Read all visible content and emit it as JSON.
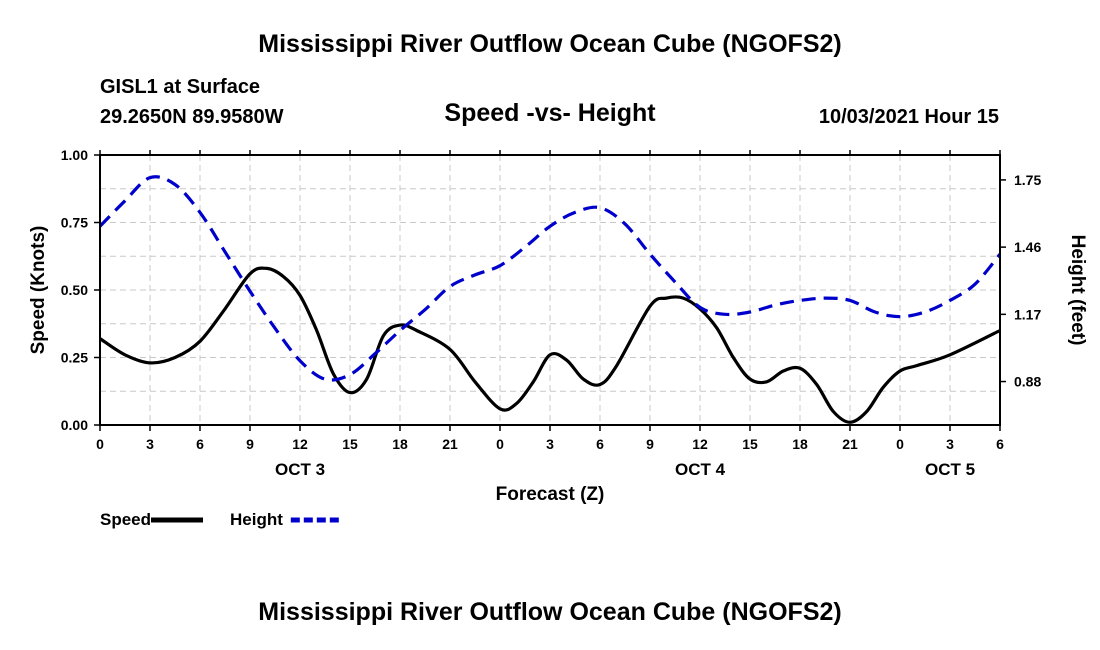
{
  "header": {
    "title": "Mississippi River Outflow Ocean Cube (NGOFS2)",
    "station": "GISL1 at Surface",
    "coordinates": "29.2650N  89.9580W",
    "subtitle": "Speed -vs- Height",
    "datetime": "10/03/2021 Hour 15"
  },
  "footer": {
    "title": "Mississippi River Outflow Ocean Cube (NGOFS2)"
  },
  "chart_data": {
    "type": "line",
    "title": "Speed -vs- Height",
    "xlabel": "Forecast (Z)",
    "ylabel": "Speed (Knots)",
    "y2label": "Height (feet)",
    "x_unit": "hours since 10/03/2021 00Z",
    "xlim": [
      0,
      54
    ],
    "ylim": [
      0,
      1.0
    ],
    "y2lim": [
      0.6925,
      1.8575
    ],
    "x_ticks": [
      0,
      3,
      6,
      9,
      12,
      15,
      18,
      21,
      24,
      27,
      30,
      33,
      36,
      39,
      42,
      45,
      48,
      51,
      54
    ],
    "x_tick_labels": [
      "0",
      "3",
      "6",
      "9",
      "12",
      "15",
      "18",
      "21",
      "0",
      "3",
      "6",
      "9",
      "12",
      "15",
      "18",
      "21",
      "0",
      "3",
      "6"
    ],
    "day_labels": [
      {
        "x": 12,
        "label": "OCT 3"
      },
      {
        "x": 36,
        "label": "OCT 4"
      },
      {
        "x": 51,
        "label": "OCT 5"
      }
    ],
    "y_ticks": [
      0,
      0.25,
      0.5,
      0.75,
      1.0
    ],
    "y_tick_labels": [
      "0.00",
      "0.25",
      "0.50",
      "0.75",
      "1.00"
    ],
    "y2_ticks": [
      0.88,
      1.17,
      1.46,
      1.75
    ],
    "y2_tick_labels": [
      "0.88",
      "1.17",
      "1.46",
      "1.75"
    ],
    "grid": true,
    "legend_position": "bottom-left",
    "series": [
      {
        "name": "Speed",
        "axis": "left",
        "color": "#000000",
        "style": "solid",
        "x": [
          0,
          1.5,
          3,
          4.5,
          6,
          7.5,
          9,
          10,
          11,
          12,
          13,
          14,
          15,
          16,
          17,
          18,
          19,
          21,
          22.5,
          24,
          25,
          26,
          27,
          28,
          29,
          30,
          31,
          33,
          34,
          35,
          36,
          37,
          38,
          39,
          40,
          41,
          42,
          43,
          44,
          45,
          46,
          47,
          48,
          49,
          51,
          54
        ],
        "values": [
          0.32,
          0.26,
          0.23,
          0.25,
          0.31,
          0.43,
          0.56,
          0.58,
          0.55,
          0.48,
          0.35,
          0.19,
          0.12,
          0.17,
          0.33,
          0.37,
          0.35,
          0.28,
          0.16,
          0.06,
          0.08,
          0.16,
          0.26,
          0.24,
          0.17,
          0.15,
          0.22,
          0.44,
          0.47,
          0.47,
          0.43,
          0.36,
          0.25,
          0.17,
          0.16,
          0.2,
          0.21,
          0.15,
          0.05,
          0.01,
          0.05,
          0.14,
          0.2,
          0.22,
          0.26,
          0.35
        ]
      },
      {
        "name": "Height",
        "axis": "right",
        "color": "#0000cc",
        "style": "dashed",
        "x": [
          0,
          1.5,
          3,
          4.5,
          6,
          7.5,
          9,
          10.5,
          12,
          13.5,
          15,
          16.5,
          18,
          19.5,
          21,
          22.5,
          24,
          25.5,
          27,
          28.5,
          30,
          31.5,
          33,
          34.5,
          36,
          37.5,
          39,
          40.5,
          42,
          43.5,
          45,
          46.5,
          48,
          49.5,
          51,
          52.5,
          54
        ],
        "values": [
          1.55,
          1.66,
          1.76,
          1.73,
          1.61,
          1.44,
          1.27,
          1.11,
          0.97,
          0.89,
          0.91,
          1.0,
          1.1,
          1.19,
          1.29,
          1.34,
          1.38,
          1.46,
          1.55,
          1.61,
          1.63,
          1.56,
          1.43,
          1.31,
          1.2,
          1.17,
          1.18,
          1.21,
          1.23,
          1.24,
          1.23,
          1.18,
          1.16,
          1.18,
          1.23,
          1.3,
          1.43
        ]
      }
    ]
  }
}
